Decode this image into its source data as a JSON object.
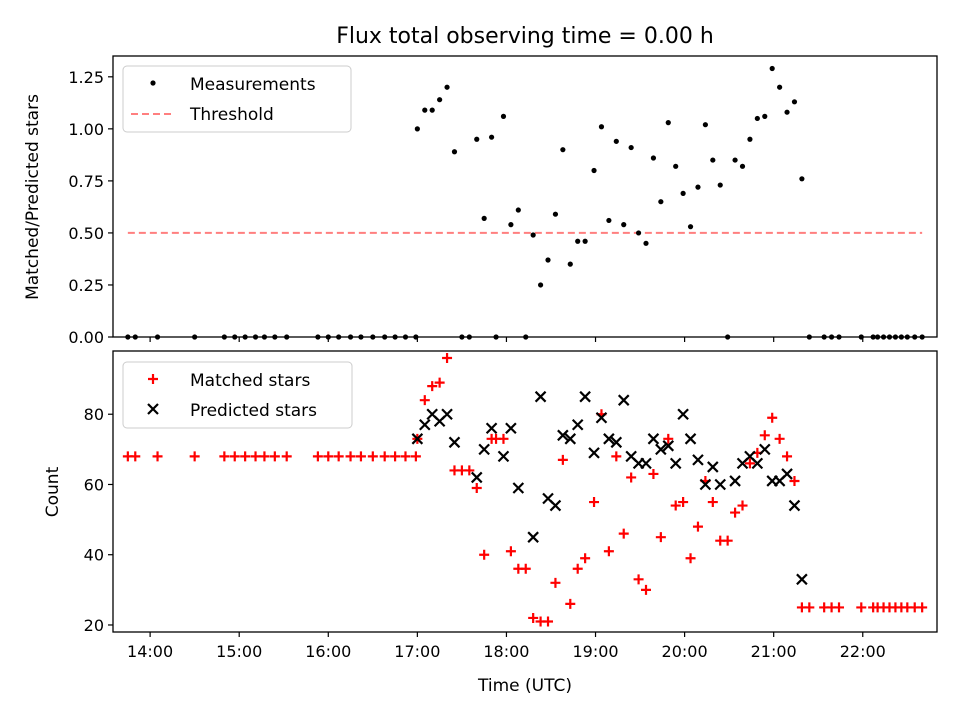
{
  "figure": {
    "title": "Flux total observing time = 0.00 h"
  },
  "chart_data": [
    {
      "type": "scatter",
      "panel": "top",
      "title": "Flux total observing time = 0.00 h",
      "xlabel": "",
      "ylabel": "Matched/Predicted stars",
      "ylim": [
        0,
        1.35
      ],
      "yticks": [
        0.0,
        0.25,
        0.5,
        0.75,
        1.0,
        1.25
      ],
      "ytick_labels": [
        "0.00",
        "0.25",
        "0.50",
        "0.75",
        "1.00",
        "1.25"
      ],
      "xlim": [
        "13:35",
        "22:50"
      ],
      "legend": {
        "position": "top-left",
        "entries": [
          "Measurements",
          "Threshold"
        ]
      },
      "threshold": {
        "name": "Threshold",
        "value": 0.5,
        "x_range": [
          "13:45",
          "22:40"
        ],
        "color": "#ff7f7f",
        "style": "dashed"
      },
      "series": [
        {
          "name": "Measurements",
          "marker": "dot",
          "color": "#000000",
          "points": [
            [
              "13:45",
              0
            ],
            [
              "13:50",
              0
            ],
            [
              "14:05",
              0
            ],
            [
              "14:30",
              0
            ],
            [
              "14:50",
              0
            ],
            [
              "14:57",
              0
            ],
            [
              "15:04",
              0
            ],
            [
              "15:11",
              0
            ],
            [
              "15:17",
              0
            ],
            [
              "15:24",
              0
            ],
            [
              "15:32",
              0
            ],
            [
              "15:53",
              0
            ],
            [
              "16:00",
              0
            ],
            [
              "16:07",
              0
            ],
            [
              "16:15",
              0
            ],
            [
              "16:22",
              0
            ],
            [
              "16:30",
              0
            ],
            [
              "16:38",
              0
            ],
            [
              "16:45",
              0
            ],
            [
              "16:52",
              0
            ],
            [
              "16:59",
              0
            ],
            [
              "17:00",
              1.0
            ],
            [
              "17:05",
              1.09
            ],
            [
              "17:10",
              1.09
            ],
            [
              "17:15",
              1.14
            ],
            [
              "17:20",
              1.2
            ],
            [
              "17:25",
              0.89
            ],
            [
              "17:30",
              0
            ],
            [
              "17:35",
              0
            ],
            [
              "17:40",
              0.95
            ],
            [
              "17:45",
              0.57
            ],
            [
              "17:50",
              0.96
            ],
            [
              "17:53",
              0
            ],
            [
              "17:58",
              1.06
            ],
            [
              "18:03",
              0.54
            ],
            [
              "18:08",
              0.61
            ],
            [
              "18:13",
              0
            ],
            [
              "18:18",
              0.49
            ],
            [
              "18:23",
              0.25
            ],
            [
              "18:28",
              0.37
            ],
            [
              "18:33",
              0.59
            ],
            [
              "18:38",
              0.9
            ],
            [
              "18:43",
              0.35
            ],
            [
              "18:48",
              0.46
            ],
            [
              "18:53",
              0.46
            ],
            [
              "18:59",
              0.8
            ],
            [
              "19:04",
              1.01
            ],
            [
              "19:09",
              0.56
            ],
            [
              "19:14",
              0.94
            ],
            [
              "19:19",
              0.54
            ],
            [
              "19:24",
              0.91
            ],
            [
              "19:29",
              0.5
            ],
            [
              "19:34",
              0.45
            ],
            [
              "19:39",
              0.86
            ],
            [
              "19:44",
              0.65
            ],
            [
              "19:49",
              1.03
            ],
            [
              "19:54",
              0.82
            ],
            [
              "19:59",
              0.69
            ],
            [
              "20:04",
              0.53
            ],
            [
              "20:09",
              0.72
            ],
            [
              "20:14",
              1.02
            ],
            [
              "20:19",
              0.85
            ],
            [
              "20:24",
              0.73
            ],
            [
              "20:29",
              0
            ],
            [
              "20:34",
              0.85
            ],
            [
              "20:39",
              0.82
            ],
            [
              "20:44",
              0.95
            ],
            [
              "20:49",
              1.05
            ],
            [
              "20:54",
              1.06
            ],
            [
              "20:59",
              1.29
            ],
            [
              "21:04",
              1.2
            ],
            [
              "21:09",
              1.08
            ],
            [
              "21:14",
              1.13
            ],
            [
              "21:19",
              0.76
            ],
            [
              "21:24",
              0
            ],
            [
              "21:34",
              0
            ],
            [
              "21:39",
              0
            ],
            [
              "21:44",
              0
            ],
            [
              "21:59",
              0
            ],
            [
              "22:07",
              0
            ],
            [
              "22:10",
              0
            ],
            [
              "22:14",
              0
            ],
            [
              "22:18",
              0
            ],
            [
              "22:22",
              0
            ],
            [
              "22:26",
              0
            ],
            [
              "22:30",
              0
            ],
            [
              "22:35",
              0
            ],
            [
              "22:40",
              0
            ]
          ]
        }
      ]
    },
    {
      "type": "scatter",
      "panel": "bottom",
      "title": "",
      "xlabel": "Time (UTC)",
      "ylabel": "Count",
      "ylim": [
        18,
        98
      ],
      "yticks": [
        20,
        40,
        60,
        80
      ],
      "ytick_labels": [
        "20",
        "40",
        "60",
        "80"
      ],
      "xlim": [
        "13:35",
        "22:50"
      ],
      "xticks": [
        "14:00",
        "15:00",
        "16:00",
        "17:00",
        "18:00",
        "19:00",
        "20:00",
        "21:00",
        "22:00"
      ],
      "legend": {
        "position": "top-left",
        "entries": [
          "Matched stars",
          "Predicted stars"
        ]
      },
      "series": [
        {
          "name": "Matched stars",
          "marker": "plus",
          "color": "#ff0000",
          "points": [
            [
              "13:45",
              68
            ],
            [
              "13:50",
              68
            ],
            [
              "14:05",
              68
            ],
            [
              "14:30",
              68
            ],
            [
              "14:50",
              68
            ],
            [
              "14:57",
              68
            ],
            [
              "15:04",
              68
            ],
            [
              "15:11",
              68
            ],
            [
              "15:17",
              68
            ],
            [
              "15:24",
              68
            ],
            [
              "15:32",
              68
            ],
            [
              "15:53",
              68
            ],
            [
              "16:00",
              68
            ],
            [
              "16:07",
              68
            ],
            [
              "16:15",
              68
            ],
            [
              "16:22",
              68
            ],
            [
              "16:30",
              68
            ],
            [
              "16:38",
              68
            ],
            [
              "16:45",
              68
            ],
            [
              "16:52",
              68
            ],
            [
              "16:59",
              68
            ],
            [
              "17:00",
              73
            ],
            [
              "17:05",
              84
            ],
            [
              "17:10",
              88
            ],
            [
              "17:15",
              89
            ],
            [
              "17:20",
              96
            ],
            [
              "17:25",
              64
            ],
            [
              "17:30",
              64
            ],
            [
              "17:35",
              64
            ],
            [
              "17:40",
              59
            ],
            [
              "17:45",
              40
            ],
            [
              "17:50",
              73
            ],
            [
              "17:53",
              73
            ],
            [
              "17:58",
              73
            ],
            [
              "18:03",
              41
            ],
            [
              "18:08",
              36
            ],
            [
              "18:13",
              36
            ],
            [
              "18:18",
              22
            ],
            [
              "18:23",
              21
            ],
            [
              "18:28",
              21
            ],
            [
              "18:33",
              32
            ],
            [
              "18:38",
              67
            ],
            [
              "18:43",
              26
            ],
            [
              "18:48",
              36
            ],
            [
              "18:53",
              39
            ],
            [
              "18:59",
              55
            ],
            [
              "19:04",
              80
            ],
            [
              "19:09",
              41
            ],
            [
              "19:14",
              68
            ],
            [
              "19:19",
              46
            ],
            [
              "19:24",
              62
            ],
            [
              "19:29",
              33
            ],
            [
              "19:34",
              30
            ],
            [
              "19:39",
              63
            ],
            [
              "19:44",
              45
            ],
            [
              "19:49",
              73
            ],
            [
              "19:54",
              54
            ],
            [
              "19:59",
              55
            ],
            [
              "20:04",
              39
            ],
            [
              "20:09",
              48
            ],
            [
              "20:14",
              61
            ],
            [
              "20:19",
              55
            ],
            [
              "20:24",
              44
            ],
            [
              "20:29",
              44
            ],
            [
              "20:34",
              52
            ],
            [
              "20:39",
              54
            ],
            [
              "20:44",
              66
            ],
            [
              "20:49",
              69
            ],
            [
              "20:54",
              74
            ],
            [
              "20:59",
              79
            ],
            [
              "21:04",
              73
            ],
            [
              "21:09",
              68
            ],
            [
              "21:14",
              61
            ],
            [
              "21:19",
              25
            ],
            [
              "21:24",
              25
            ],
            [
              "21:34",
              25
            ],
            [
              "21:39",
              25
            ],
            [
              "21:44",
              25
            ],
            [
              "21:59",
              25
            ],
            [
              "22:07",
              25
            ],
            [
              "22:10",
              25
            ],
            [
              "22:14",
              25
            ],
            [
              "22:18",
              25
            ],
            [
              "22:22",
              25
            ],
            [
              "22:26",
              25
            ],
            [
              "22:30",
              25
            ],
            [
              "22:35",
              25
            ],
            [
              "22:40",
              25
            ]
          ]
        },
        {
          "name": "Predicted stars",
          "marker": "x",
          "color": "#000000",
          "points": [
            [
              "17:00",
              73
            ],
            [
              "17:05",
              77
            ],
            [
              "17:10",
              80
            ],
            [
              "17:15",
              78
            ],
            [
              "17:20",
              80
            ],
            [
              "17:25",
              72
            ],
            [
              "17:40",
              62
            ],
            [
              "17:45",
              70
            ],
            [
              "17:50",
              76
            ],
            [
              "17:58",
              68
            ],
            [
              "18:03",
              76
            ],
            [
              "18:08",
              59
            ],
            [
              "18:18",
              45
            ],
            [
              "18:23",
              85
            ],
            [
              "18:28",
              56
            ],
            [
              "18:33",
              54
            ],
            [
              "18:38",
              74
            ],
            [
              "18:43",
              73
            ],
            [
              "18:48",
              77
            ],
            [
              "18:53",
              85
            ],
            [
              "18:59",
              69
            ],
            [
              "19:04",
              79
            ],
            [
              "19:09",
              73
            ],
            [
              "19:14",
              72
            ],
            [
              "19:19",
              84
            ],
            [
              "19:24",
              68
            ],
            [
              "19:29",
              66
            ],
            [
              "19:34",
              66
            ],
            [
              "19:39",
              73
            ],
            [
              "19:44",
              70
            ],
            [
              "19:49",
              71
            ],
            [
              "19:54",
              66
            ],
            [
              "19:59",
              80
            ],
            [
              "20:04",
              73
            ],
            [
              "20:09",
              67
            ],
            [
              "20:14",
              60
            ],
            [
              "20:19",
              65
            ],
            [
              "20:24",
              60
            ],
            [
              "20:34",
              61
            ],
            [
              "20:39",
              66
            ],
            [
              "20:44",
              68
            ],
            [
              "20:49",
              66
            ],
            [
              "20:54",
              70
            ],
            [
              "20:59",
              61
            ],
            [
              "21:04",
              61
            ],
            [
              "21:09",
              63
            ],
            [
              "21:14",
              54
            ],
            [
              "21:19",
              33
            ]
          ]
        }
      ]
    }
  ]
}
